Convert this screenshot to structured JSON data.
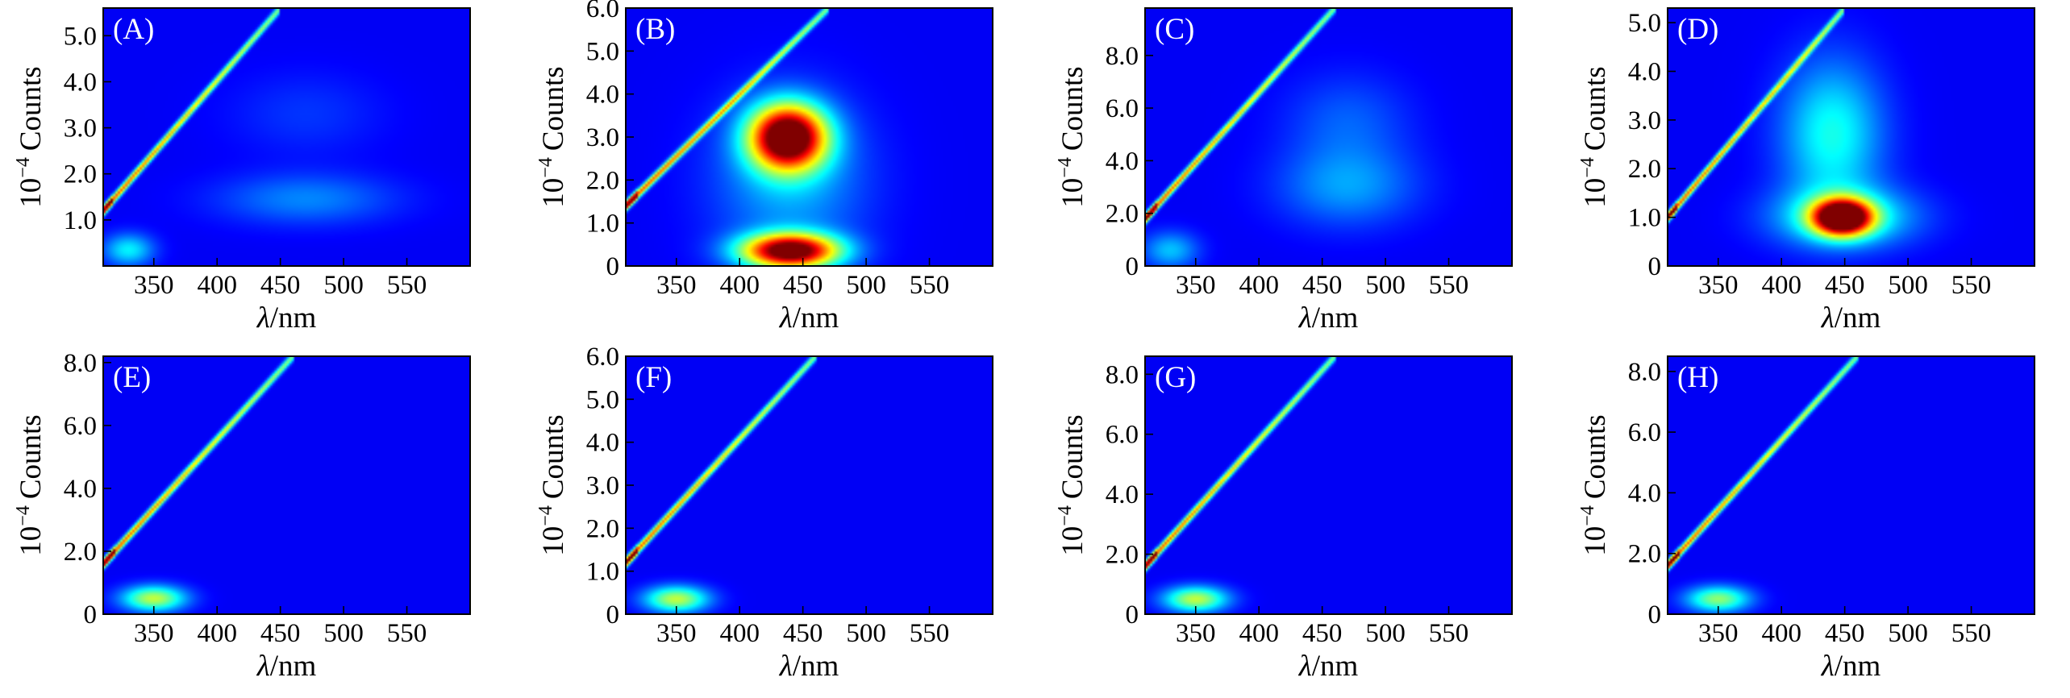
{
  "figure": {
    "description_free": true
  },
  "chart_data": [
    {
      "type": "heatmap",
      "panel": "(A)",
      "xlabel_italic": "λ",
      "xlabel_unit": "/nm",
      "ylabel_exp": "10",
      "ylabel_sup": "−4",
      "ylabel_word": "Counts",
      "xlim": [
        310,
        600
      ],
      "ylim": [
        0,
        5.6
      ],
      "x_ticks": [
        350,
        400,
        450,
        500,
        550
      ],
      "x_tick_labels": [
        "350",
        "400",
        "450",
        "500",
        "550"
      ],
      "y_ticks": [
        1,
        2,
        3,
        4,
        5
      ],
      "y_tick_labels": [
        "1.0",
        "2.0",
        "3.0",
        "4.0",
        "5.0"
      ],
      "scatter_line": {
        "x_start": 310,
        "x_end": 450,
        "y_start": 1.2,
        "y_end": 5.6,
        "peak": 0.7
      },
      "blobs": [
        {
          "x": 330,
          "y": 0.35,
          "sx": 20,
          "sy": 0.35,
          "amp": 0.25
        },
        {
          "x": 470,
          "y": 1.45,
          "sx": 70,
          "sy": 0.55,
          "amp": 0.14
        },
        {
          "x": 470,
          "y": 3.3,
          "sx": 60,
          "sy": 0.9,
          "amp": 0.06
        }
      ]
    },
    {
      "type": "heatmap",
      "panel": "(B)",
      "xlabel_italic": "λ",
      "xlabel_unit": "/nm",
      "ylabel_exp": "10",
      "ylabel_sup": "−4",
      "ylabel_word": "Counts",
      "xlim": [
        310,
        600
      ],
      "ylim": [
        0,
        6.0
      ],
      "x_ticks": [
        350,
        400,
        450,
        500,
        550
      ],
      "x_tick_labels": [
        "350",
        "400",
        "450",
        "500",
        "550"
      ],
      "y_ticks": [
        0,
        1,
        2,
        3,
        4,
        5,
        6
      ],
      "y_tick_labels": [
        "0",
        "1.0",
        "2.0",
        "3.0",
        "4.0",
        "5.0",
        "6.0"
      ],
      "scatter_line": {
        "x_start": 310,
        "x_end": 470,
        "y_start": 1.4,
        "y_end": 6.0,
        "peak": 0.7
      },
      "blobs": [
        {
          "x": 438,
          "y": 3.0,
          "sx": 30,
          "sy": 0.75,
          "amp": 1.0
        },
        {
          "x": 440,
          "y": 0.35,
          "sx": 38,
          "sy": 0.4,
          "amp": 0.95
        },
        {
          "x": 440,
          "y": 2.0,
          "sx": 60,
          "sy": 1.9,
          "amp": 0.18
        }
      ]
    },
    {
      "type": "heatmap",
      "panel": "(C)",
      "xlabel_italic": "λ",
      "xlabel_unit": "/nm",
      "ylabel_exp": "10",
      "ylabel_sup": "−4",
      "ylabel_word": "Counts",
      "xlim": [
        310,
        600
      ],
      "ylim": [
        0,
        9.8
      ],
      "x_ticks": [
        350,
        400,
        450,
        500,
        550
      ],
      "x_tick_labels": [
        "350",
        "400",
        "450",
        "500",
        "550"
      ],
      "y_ticks": [
        0,
        2,
        4,
        6,
        8
      ],
      "y_tick_labels": [
        "0",
        "2.0",
        "4.0",
        "6.0",
        "8.0"
      ],
      "scatter_line": {
        "x_start": 310,
        "x_end": 460,
        "y_start": 1.8,
        "y_end": 9.8,
        "peak": 0.7
      },
      "blobs": [
        {
          "x": 470,
          "y": 3.0,
          "sx": 55,
          "sy": 1.5,
          "amp": 0.16
        },
        {
          "x": 470,
          "y": 5.5,
          "sx": 50,
          "sy": 1.8,
          "amp": 0.1
        },
        {
          "x": 330,
          "y": 0.6,
          "sx": 22,
          "sy": 0.7,
          "amp": 0.2
        }
      ]
    },
    {
      "type": "heatmap",
      "panel": "(D)",
      "xlabel_italic": "λ",
      "xlabel_unit": "/nm",
      "ylabel_exp": "10",
      "ylabel_sup": "−4",
      "ylabel_word": "Counts",
      "xlim": [
        310,
        600
      ],
      "ylim": [
        0,
        5.3
      ],
      "x_ticks": [
        350,
        400,
        450,
        500,
        550
      ],
      "x_tick_labels": [
        "350",
        "400",
        "450",
        "500",
        "550"
      ],
      "y_ticks": [
        0,
        1,
        2,
        3,
        4,
        5
      ],
      "y_tick_labels": [
        "0",
        "1.0",
        "2.0",
        "3.0",
        "4.0",
        "5.0"
      ],
      "scatter_line": {
        "x_start": 310,
        "x_end": 450,
        "y_start": 1.0,
        "y_end": 5.3,
        "peak": 0.7
      },
      "blobs": [
        {
          "x": 448,
          "y": 1.0,
          "sx": 22,
          "sy": 0.35,
          "amp": 1.0
        },
        {
          "x": 450,
          "y": 1.0,
          "sx": 55,
          "sy": 0.6,
          "amp": 0.3
        },
        {
          "x": 440,
          "y": 2.7,
          "sx": 40,
          "sy": 1.5,
          "amp": 0.28
        }
      ]
    },
    {
      "type": "heatmap",
      "panel": "(E)",
      "xlabel_italic": "λ",
      "xlabel_unit": "/nm",
      "ylabel_exp": "10",
      "ylabel_sup": "−4",
      "ylabel_word": "Counts",
      "xlim": [
        310,
        600
      ],
      "ylim": [
        0,
        8.2
      ],
      "x_ticks": [
        350,
        400,
        450,
        500,
        550
      ],
      "x_tick_labels": [
        "350",
        "400",
        "450",
        "500",
        "550"
      ],
      "y_ticks": [
        0,
        2,
        4,
        6,
        8
      ],
      "y_tick_labels": [
        "0",
        "2.0",
        "4.0",
        "6.0",
        "8.0"
      ],
      "scatter_line": {
        "x_start": 310,
        "x_end": 460,
        "y_start": 1.6,
        "y_end": 8.2,
        "peak": 0.7
      },
      "blobs": [
        {
          "x": 350,
          "y": 0.5,
          "sx": 25,
          "sy": 0.4,
          "amp": 0.45
        }
      ]
    },
    {
      "type": "heatmap",
      "panel": "(F)",
      "xlabel_italic": "λ",
      "xlabel_unit": "/nm",
      "ylabel_exp": "10",
      "ylabel_sup": "−4",
      "ylabel_word": "Counts",
      "xlim": [
        310,
        600
      ],
      "ylim": [
        0,
        6.0
      ],
      "x_ticks": [
        350,
        400,
        450,
        500,
        550
      ],
      "x_tick_labels": [
        "350",
        "400",
        "450",
        "500",
        "550"
      ],
      "y_ticks": [
        0,
        1,
        2,
        3,
        4,
        5,
        6
      ],
      "y_tick_labels": [
        "0",
        "1.0",
        "2.0",
        "3.0",
        "4.0",
        "5.0",
        "6.0"
      ],
      "scatter_line": {
        "x_start": 310,
        "x_end": 460,
        "y_start": 1.2,
        "y_end": 6.0,
        "peak": 0.7
      },
      "blobs": [
        {
          "x": 350,
          "y": 0.35,
          "sx": 25,
          "sy": 0.3,
          "amp": 0.45
        }
      ]
    },
    {
      "type": "heatmap",
      "panel": "(G)",
      "xlabel_italic": "λ",
      "xlabel_unit": "/nm",
      "ylabel_exp": "10",
      "ylabel_sup": "−4",
      "ylabel_word": "Counts",
      "xlim": [
        310,
        600
      ],
      "ylim": [
        0,
        8.6
      ],
      "x_ticks": [
        350,
        400,
        450,
        500,
        550
      ],
      "x_tick_labels": [
        "350",
        "400",
        "450",
        "500",
        "550"
      ],
      "y_ticks": [
        0,
        2,
        4,
        6,
        8
      ],
      "y_tick_labels": [
        "0",
        "2.0",
        "4.0",
        "6.0",
        "8.0"
      ],
      "scatter_line": {
        "x_start": 310,
        "x_end": 460,
        "y_start": 1.6,
        "y_end": 8.6,
        "peak": 0.7
      },
      "blobs": [
        {
          "x": 350,
          "y": 0.5,
          "sx": 25,
          "sy": 0.42,
          "amp": 0.45
        }
      ]
    },
    {
      "type": "heatmap",
      "panel": "(H)",
      "xlabel_italic": "λ",
      "xlabel_unit": "/nm",
      "ylabel_exp": "10",
      "ylabel_sup": "−4",
      "ylabel_word": "Counts",
      "xlim": [
        310,
        600
      ],
      "ylim": [
        0,
        8.5
      ],
      "x_ticks": [
        350,
        400,
        450,
        500,
        550
      ],
      "x_tick_labels": [
        "350",
        "400",
        "450",
        "500",
        "550"
      ],
      "y_ticks": [
        0,
        2,
        4,
        6,
        8
      ],
      "y_tick_labels": [
        "0",
        "2.0",
        "4.0",
        "6.0",
        "8.0"
      ],
      "scatter_line": {
        "x_start": 310,
        "x_end": 460,
        "y_start": 1.6,
        "y_end": 8.5,
        "peak": 0.7
      },
      "blobs": [
        {
          "x": 350,
          "y": 0.5,
          "sx": 25,
          "sy": 0.42,
          "amp": 0.4
        }
      ]
    }
  ]
}
